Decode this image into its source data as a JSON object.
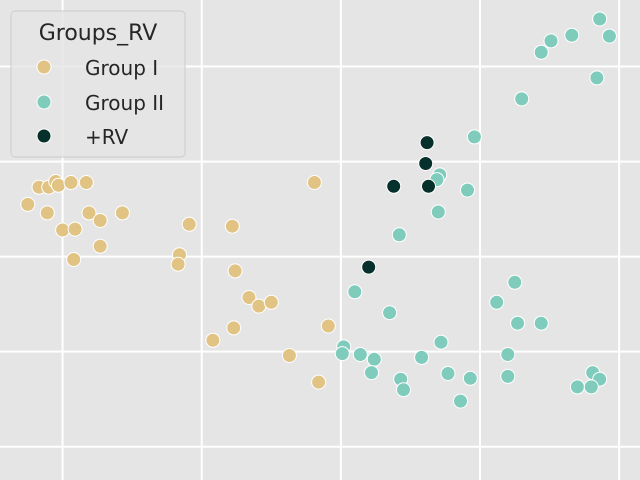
{
  "chart_data": {
    "type": "scatter",
    "title": "",
    "xlabel": "",
    "ylabel": "",
    "grid": true,
    "xlim": [
      -0.45,
      4.15
    ],
    "ylim": [
      -0.35,
      4.7
    ],
    "legend": {
      "title": "Groups_RV",
      "placement": "top-left",
      "entries": [
        {
          "label": "Group I",
          "color": "#e1c383"
        },
        {
          "label": "Group II",
          "color": "#7fcbbc"
        },
        {
          "label": "+RV",
          "color": "#06302b"
        }
      ]
    },
    "series": [
      {
        "name": "Group I",
        "color": "#e1c383",
        "points": [
          {
            "x": -0.25,
            "y": 2.55
          },
          {
            "x": -0.17,
            "y": 2.73
          },
          {
            "x": -0.1,
            "y": 2.73
          },
          {
            "x": -0.11,
            "y": 2.46
          },
          {
            "x": -0.05,
            "y": 2.79
          },
          {
            "x": -0.03,
            "y": 2.75
          },
          {
            "x": 0.06,
            "y": 2.78
          },
          {
            "x": 0.17,
            "y": 2.78
          },
          {
            "x": 0.0,
            "y": 2.28
          },
          {
            "x": 0.09,
            "y": 2.29
          },
          {
            "x": 0.19,
            "y": 2.46
          },
          {
            "x": 0.27,
            "y": 2.38
          },
          {
            "x": 0.43,
            "y": 2.46
          },
          {
            "x": 0.08,
            "y": 1.97
          },
          {
            "x": 0.27,
            "y": 2.11
          },
          {
            "x": 0.91,
            "y": 2.34
          },
          {
            "x": 0.84,
            "y": 2.02
          },
          {
            "x": 0.83,
            "y": 1.92
          },
          {
            "x": 1.22,
            "y": 2.32
          },
          {
            "x": 1.24,
            "y": 1.85
          },
          {
            "x": 1.34,
            "y": 1.57
          },
          {
            "x": 1.41,
            "y": 1.48
          },
          {
            "x": 1.5,
            "y": 1.52
          },
          {
            "x": 1.08,
            "y": 1.12
          },
          {
            "x": 1.23,
            "y": 1.25
          },
          {
            "x": 1.63,
            "y": 0.96
          },
          {
            "x": 1.81,
            "y": 2.78
          },
          {
            "x": 1.91,
            "y": 1.27
          },
          {
            "x": 1.84,
            "y": 0.68
          }
        ]
      },
      {
        "name": "Group II",
        "color": "#7fcbbc",
        "points": [
          {
            "x": 3.86,
            "y": 4.5
          },
          {
            "x": 3.66,
            "y": 4.33
          },
          {
            "x": 3.51,
            "y": 4.27
          },
          {
            "x": 3.44,
            "y": 4.15
          },
          {
            "x": 3.93,
            "y": 4.32
          },
          {
            "x": 3.84,
            "y": 3.88
          },
          {
            "x": 3.3,
            "y": 3.66
          },
          {
            "x": 2.96,
            "y": 3.26
          },
          {
            "x": 2.71,
            "y": 2.86
          },
          {
            "x": 2.69,
            "y": 2.81
          },
          {
            "x": 2.91,
            "y": 2.7
          },
          {
            "x": 2.7,
            "y": 2.47
          },
          {
            "x": 2.42,
            "y": 2.23
          },
          {
            "x": 3.25,
            "y": 1.73
          },
          {
            "x": 3.12,
            "y": 1.52
          },
          {
            "x": 3.27,
            "y": 1.3
          },
          {
            "x": 3.44,
            "y": 1.3
          },
          {
            "x": 2.1,
            "y": 1.63
          },
          {
            "x": 2.35,
            "y": 1.41
          },
          {
            "x": 2.72,
            "y": 1.1
          },
          {
            "x": 2.02,
            "y": 1.05
          },
          {
            "x": 2.01,
            "y": 0.98
          },
          {
            "x": 2.14,
            "y": 0.97
          },
          {
            "x": 2.24,
            "y": 0.92
          },
          {
            "x": 2.22,
            "y": 0.78
          },
          {
            "x": 2.58,
            "y": 0.94
          },
          {
            "x": 2.43,
            "y": 0.71
          },
          {
            "x": 2.45,
            "y": 0.6
          },
          {
            "x": 2.77,
            "y": 0.77
          },
          {
            "x": 2.93,
            "y": 0.72
          },
          {
            "x": 2.86,
            "y": 0.48
          },
          {
            "x": 3.2,
            "y": 0.97
          },
          {
            "x": 3.2,
            "y": 0.74
          },
          {
            "x": 3.81,
            "y": 0.78
          },
          {
            "x": 3.86,
            "y": 0.71
          },
          {
            "x": 3.7,
            "y": 0.63
          },
          {
            "x": 3.8,
            "y": 0.63
          }
        ]
      },
      {
        "name": "+RV",
        "color": "#06302b",
        "points": [
          {
            "x": 2.62,
            "y": 3.2
          },
          {
            "x": 2.61,
            "y": 2.98
          },
          {
            "x": 2.63,
            "y": 2.74
          },
          {
            "x": 2.38,
            "y": 2.74
          },
          {
            "x": 2.2,
            "y": 1.89
          }
        ]
      }
    ]
  }
}
